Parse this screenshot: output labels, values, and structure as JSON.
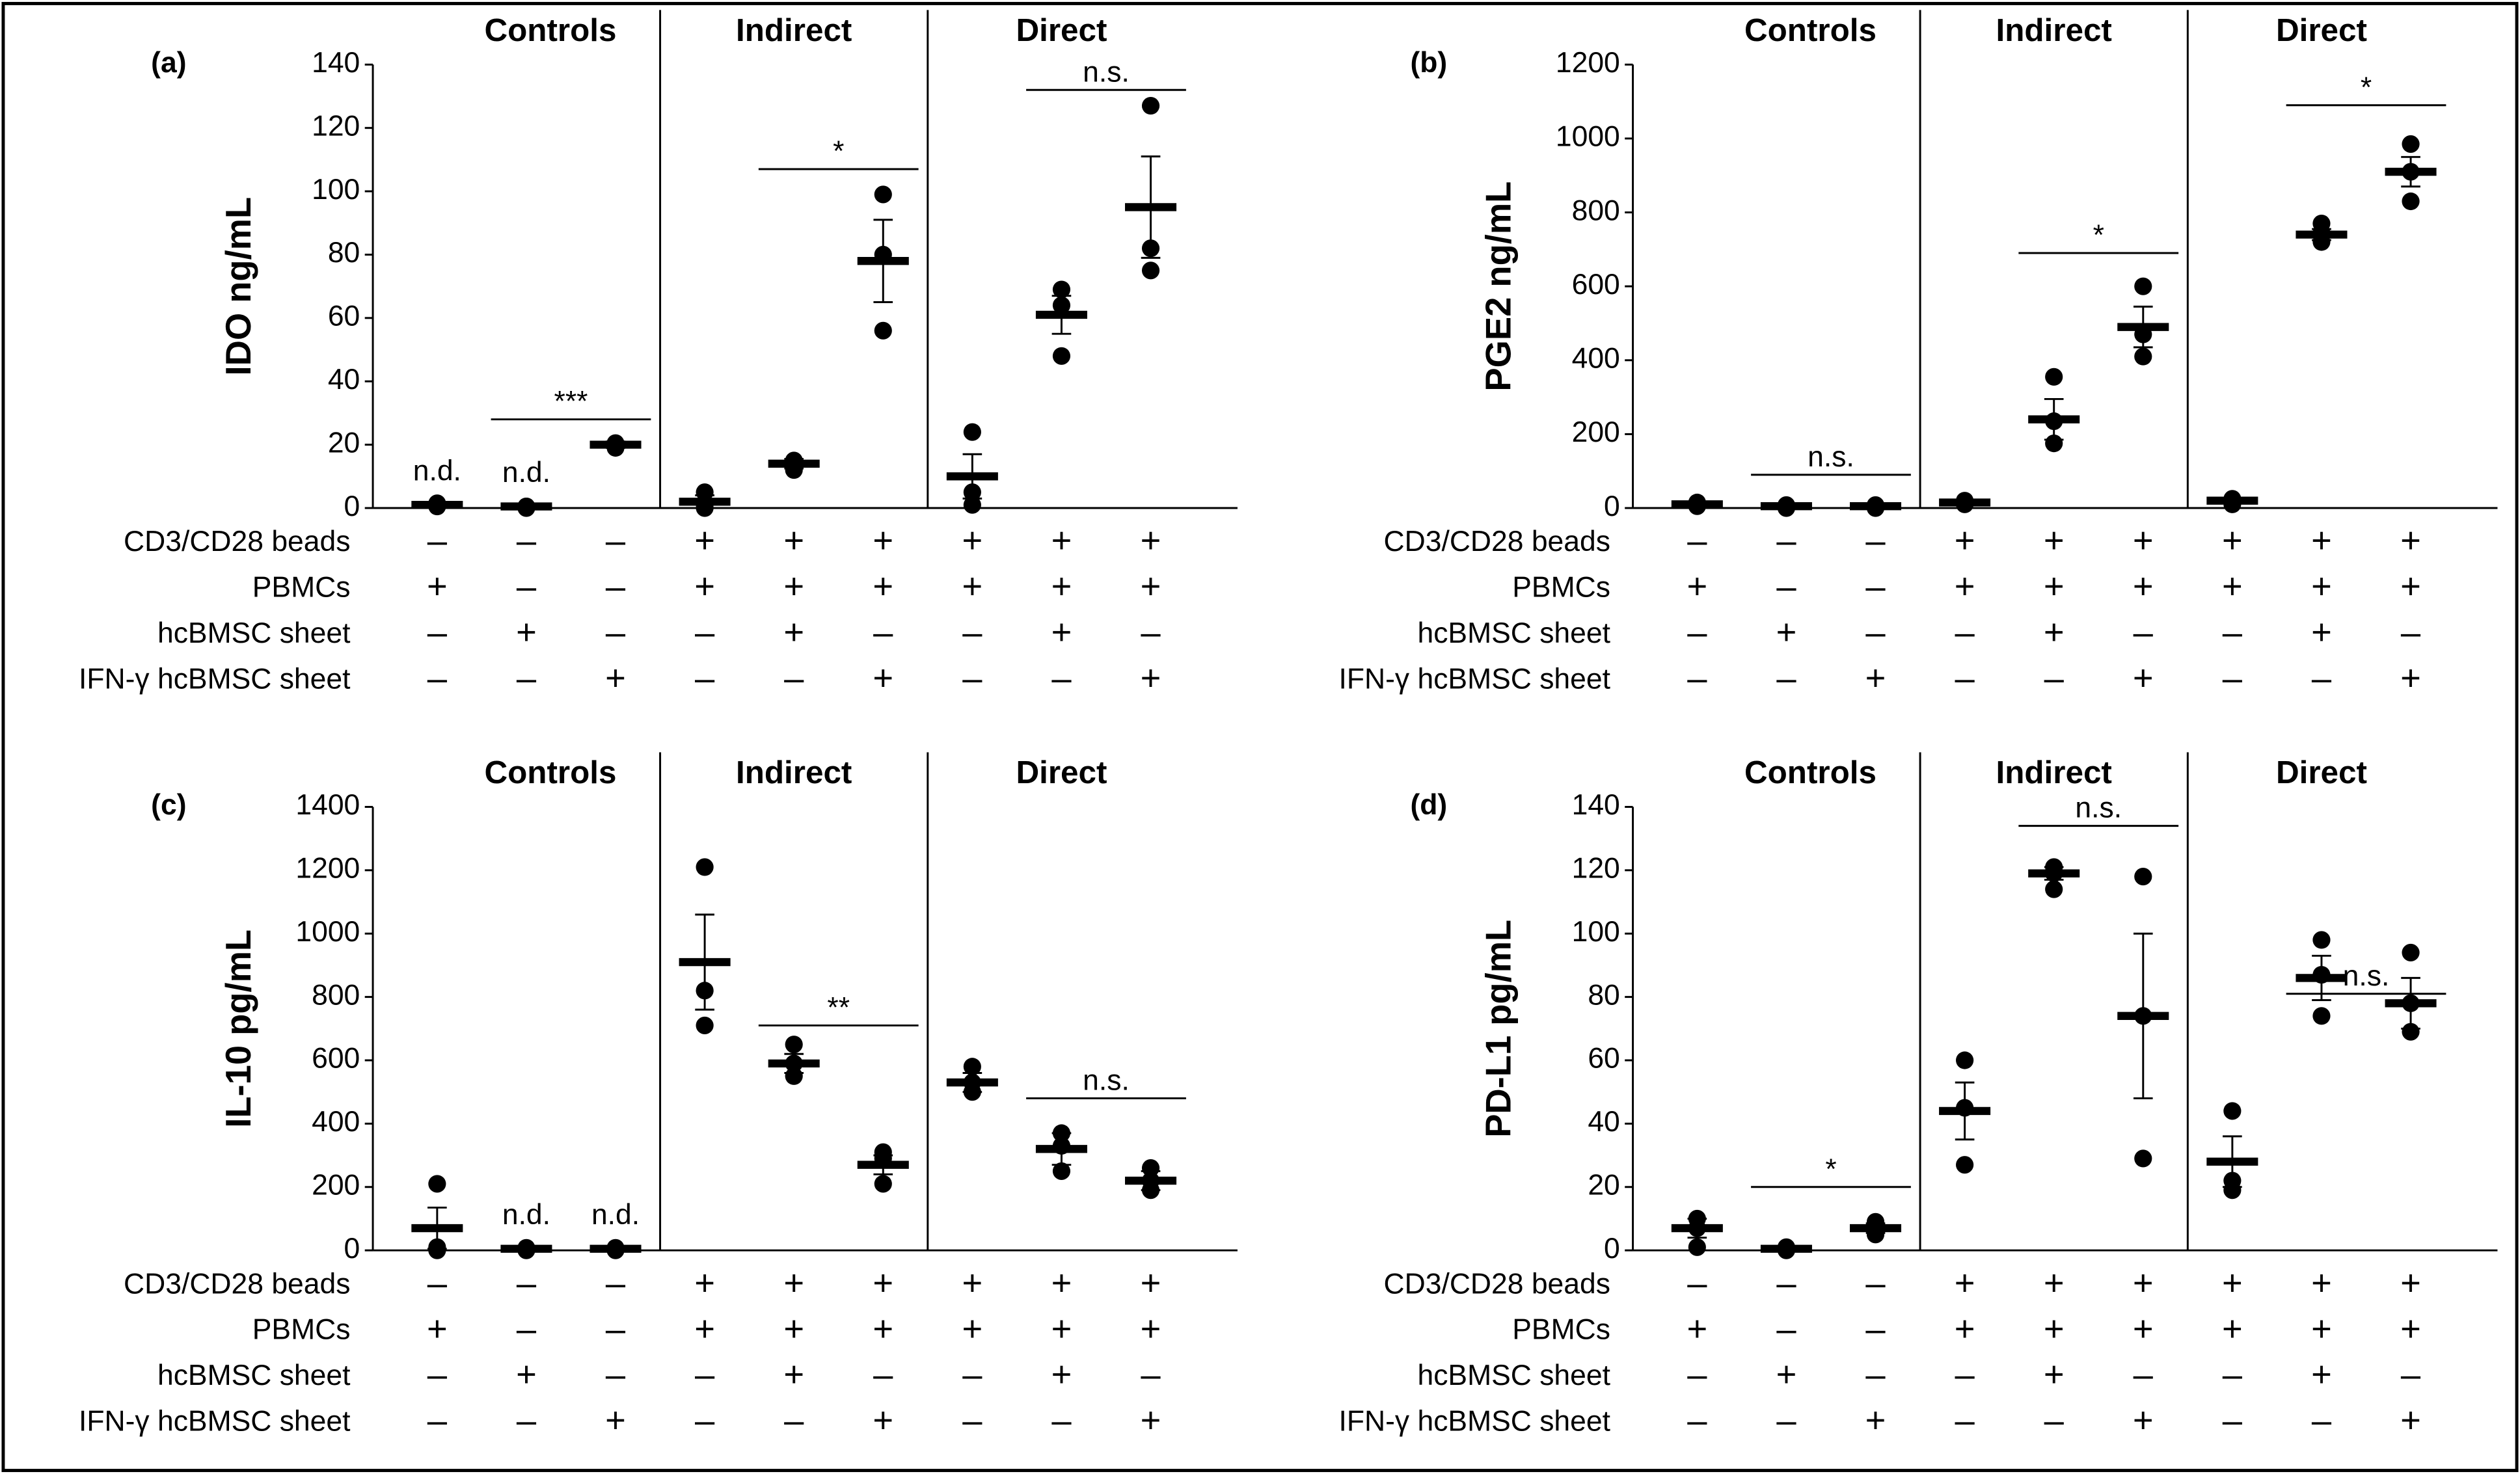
{
  "chart_data": [
    {
      "type": "dotplot",
      "panel": "(a)",
      "ylabel": "IDO ng/mL",
      "ylim": [
        0,
        140
      ],
      "yticks": [
        0,
        20,
        40,
        60,
        80,
        100,
        120,
        140
      ],
      "groups": [
        "Controls",
        "Indirect",
        "Direct"
      ],
      "conditions": [
        {
          "name": "CD3/CD28 beads",
          "signs": [
            "–",
            "–",
            "–",
            "+",
            "+",
            "+",
            "+",
            "+",
            "+"
          ]
        },
        {
          "name": "PBMCs",
          "signs": [
            "+",
            "–",
            "–",
            "+",
            "+",
            "+",
            "+",
            "+",
            "+"
          ]
        },
        {
          "name": "hcBMSC sheet",
          "signs": [
            "–",
            "+",
            "–",
            "–",
            "+",
            "–",
            "–",
            "+",
            "–"
          ]
        },
        {
          "name": "IFN-γ hcBMSC sheet",
          "signs": [
            "–",
            "–",
            "+",
            "–",
            "–",
            "+",
            "–",
            "–",
            "+"
          ]
        }
      ],
      "means": [
        1,
        0.5,
        20,
        2,
        14,
        78,
        10,
        61,
        95
      ],
      "errors": [
        0.5,
        0.3,
        1,
        2,
        1.5,
        13,
        7,
        6,
        16
      ],
      "points": [
        [
          0.5,
          1,
          1.5
        ],
        [
          0,
          0.5,
          0.5
        ],
        [
          19,
          20,
          20.5
        ],
        [
          0,
          1,
          5
        ],
        [
          12,
          14,
          15
        ],
        [
          56,
          80,
          99
        ],
        [
          1,
          5,
          24
        ],
        [
          48,
          64,
          69
        ],
        [
          75,
          82,
          127
        ]
      ],
      "nd": [
        "n.d.",
        "n.d.",
        null,
        null,
        null,
        null,
        null,
        null,
        null
      ],
      "brackets": [
        {
          "label": "***",
          "from": 1,
          "to": 2,
          "y": 28
        },
        {
          "label": "*",
          "from": 4,
          "to": 5,
          "y": 107
        },
        {
          "label": "n.s.",
          "from": 7,
          "to": 8,
          "y": 132
        }
      ]
    },
    {
      "type": "dotplot",
      "panel": "(b)",
      "ylabel": "PGE2 ng/mL",
      "ylim": [
        0,
        1200
      ],
      "yticks": [
        0,
        200,
        400,
        600,
        800,
        1000,
        1200
      ],
      "groups": [
        "Controls",
        "Indirect",
        "Direct"
      ],
      "conditions": [
        {
          "name": "CD3/CD28 beads",
          "signs": [
            "–",
            "–",
            "–",
            "+",
            "+",
            "+",
            "+",
            "+",
            "+"
          ]
        },
        {
          "name": "PBMCs",
          "signs": [
            "+",
            "–",
            "–",
            "+",
            "+",
            "+",
            "+",
            "+",
            "+"
          ]
        },
        {
          "name": "hcBMSC sheet",
          "signs": [
            "–",
            "+",
            "–",
            "–",
            "+",
            "–",
            "–",
            "+",
            "–"
          ]
        },
        {
          "name": "IFN-γ hcBMSC sheet",
          "signs": [
            "–",
            "–",
            "+",
            "–",
            "–",
            "+",
            "–",
            "–",
            "+"
          ]
        }
      ],
      "means": [
        10,
        5,
        5,
        15,
        240,
        490,
        20,
        740,
        910
      ],
      "errors": [
        5,
        3,
        3,
        5,
        55,
        55,
        5,
        15,
        40
      ],
      "points": [
        [
          5,
          10,
          15
        ],
        [
          0,
          5,
          8
        ],
        [
          0,
          5,
          8
        ],
        [
          10,
          15,
          20
        ],
        [
          175,
          235,
          355
        ],
        [
          410,
          470,
          600
        ],
        [
          10,
          20,
          25
        ],
        [
          720,
          745,
          770
        ],
        [
          830,
          910,
          985
        ]
      ],
      "nd": [
        null,
        null,
        null,
        null,
        null,
        null,
        null,
        null,
        null
      ],
      "brackets": [
        {
          "label": "n.s.",
          "from": 1,
          "to": 2,
          "y": 90
        },
        {
          "label": "*",
          "from": 4,
          "to": 5,
          "y": 690
        },
        {
          "label": "*",
          "from": 7,
          "to": 8,
          "y": 1090
        }
      ]
    },
    {
      "type": "dotplot",
      "panel": "(c)",
      "ylabel": "IL-10 pg/mL",
      "ylim": [
        0,
        1400
      ],
      "yticks": [
        0,
        200,
        400,
        600,
        800,
        1000,
        1200,
        1400
      ],
      "groups": [
        "Controls",
        "Indirect",
        "Direct"
      ],
      "conditions": [
        {
          "name": "CD3/CD28 beads",
          "signs": [
            "–",
            "–",
            "–",
            "+",
            "+",
            "+",
            "+",
            "+",
            "+"
          ]
        },
        {
          "name": "PBMCs",
          "signs": [
            "+",
            "–",
            "–",
            "+",
            "+",
            "+",
            "+",
            "+",
            "+"
          ]
        },
        {
          "name": "hcBMSC sheet",
          "signs": [
            "–",
            "+",
            "–",
            "–",
            "+",
            "–",
            "–",
            "+",
            "–"
          ]
        },
        {
          "name": "IFN-γ hcBMSC sheet",
          "signs": [
            "–",
            "–",
            "+",
            "–",
            "–",
            "+",
            "–",
            "–",
            "+"
          ]
        }
      ],
      "means": [
        70,
        5,
        5,
        910,
        590,
        270,
        530,
        320,
        220
      ],
      "errors": [
        65,
        3,
        3,
        150,
        30,
        30,
        30,
        50,
        30
      ],
      "points": [
        [
          0,
          10,
          210
        ],
        [
          0,
          5,
          8
        ],
        [
          0,
          5,
          8
        ],
        [
          710,
          820,
          1210
        ],
        [
          550,
          590,
          650
        ],
        [
          210,
          290,
          310
        ],
        [
          500,
          530,
          580
        ],
        [
          250,
          330,
          370
        ],
        [
          190,
          220,
          260
        ]
      ],
      "nd": [
        null,
        "n.d.",
        "n.d.",
        null,
        null,
        null,
        null,
        null,
        null
      ],
      "brackets": [
        {
          "label": "**",
          "from": 4,
          "to": 5,
          "y": 710
        },
        {
          "label": "n.s.",
          "from": 7,
          "to": 8,
          "y": 480
        }
      ]
    },
    {
      "type": "dotplot",
      "panel": "(d)",
      "ylabel": "PD-L1 pg/mL",
      "ylim": [
        0,
        140
      ],
      "yticks": [
        0,
        20,
        40,
        60,
        80,
        100,
        120,
        140
      ],
      "groups": [
        "Controls",
        "Indirect",
        "Direct"
      ],
      "conditions": [
        {
          "name": "CD3/CD28 beads",
          "signs": [
            "–",
            "–",
            "–",
            "+",
            "+",
            "+",
            "+",
            "+",
            "+"
          ]
        },
        {
          "name": "PBMCs",
          "signs": [
            "+",
            "–",
            "–",
            "+",
            "+",
            "+",
            "+",
            "+",
            "+"
          ]
        },
        {
          "name": "hcBMSC sheet",
          "signs": [
            "–",
            "+",
            "–",
            "–",
            "+",
            "–",
            "–",
            "+",
            "–"
          ]
        },
        {
          "name": "IFN-γ hcBMSC sheet",
          "signs": [
            "–",
            "–",
            "+",
            "–",
            "–",
            "+",
            "–",
            "–",
            "+"
          ]
        }
      ],
      "means": [
        7,
        0.5,
        7,
        44,
        119,
        74,
        28,
        86,
        78
      ],
      "errors": [
        3,
        0.3,
        1.5,
        9,
        2,
        26,
        8,
        7,
        8
      ],
      "points": [
        [
          1,
          7,
          10
        ],
        [
          0,
          0.5,
          1
        ],
        [
          5,
          7,
          9
        ],
        [
          27,
          45,
          60
        ],
        [
          114,
          119,
          121
        ],
        [
          29,
          74,
          118
        ],
        [
          19,
          22,
          44
        ],
        [
          74,
          87,
          98
        ],
        [
          69,
          78,
          94
        ]
      ],
      "nd": [
        null,
        null,
        null,
        null,
        null,
        null,
        null,
        null,
        null
      ],
      "brackets": [
        {
          "label": "*",
          "from": 1,
          "to": 2,
          "y": 20
        },
        {
          "label": "n.s.",
          "from": 4,
          "to": 5,
          "y": 134
        },
        {
          "label": "n.s.",
          "from": 7,
          "to": 8,
          "y": 81
        }
      ]
    }
  ]
}
